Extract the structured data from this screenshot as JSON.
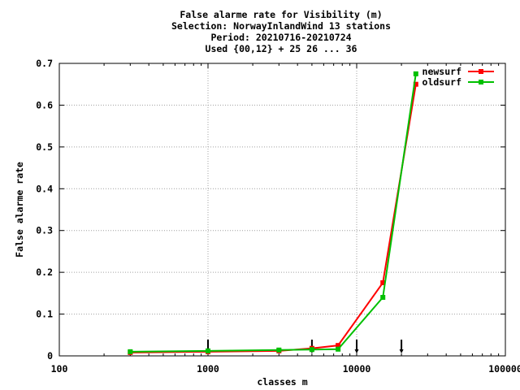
{
  "chart_data": {
    "type": "line",
    "title_lines": [
      "False alarme rate  for Visibility (m)",
      "Selection: NorwayInlandWind     13 stations",
      "Period: 20210716-20210724",
      "Used {00,12} + 25 26 ... 36"
    ],
    "xlabel": "classes m",
    "ylabel": "False alarme rate",
    "x_scale": "log",
    "xlim": [
      100,
      100000
    ],
    "ylim": [
      0,
      0.7
    ],
    "x_ticks": [
      100,
      1000,
      10000,
      100000
    ],
    "x_tick_labels": [
      "100",
      "1000",
      "10000",
      "100000"
    ],
    "y_ticks": [
      0,
      0.1,
      0.2,
      0.3,
      0.4,
      0.5,
      0.6,
      0.7
    ],
    "y_tick_labels": [
      "0",
      "0.1",
      "0.2",
      "0.3",
      "0.4",
      "0.5",
      "0.6",
      "0.7"
    ],
    "grid": true,
    "legend_position": "top-right",
    "series": [
      {
        "name": "newsurf",
        "color": "#ff0000",
        "x": [
          300,
          1000,
          3000,
          5000,
          7500,
          15000,
          25000
        ],
        "y": [
          0.008,
          0.01,
          0.012,
          0.018,
          0.025,
          0.175,
          0.65
        ]
      },
      {
        "name": "oldsurf",
        "color": "#00c000",
        "x": [
          300,
          1000,
          3000,
          5000,
          7500,
          15000,
          25000
        ],
        "y": [
          0.01,
          0.012,
          0.014,
          0.015,
          0.016,
          0.14,
          0.675
        ]
      }
    ],
    "threshold_markers_x": [
      1000,
      5000,
      10000,
      20000
    ]
  }
}
